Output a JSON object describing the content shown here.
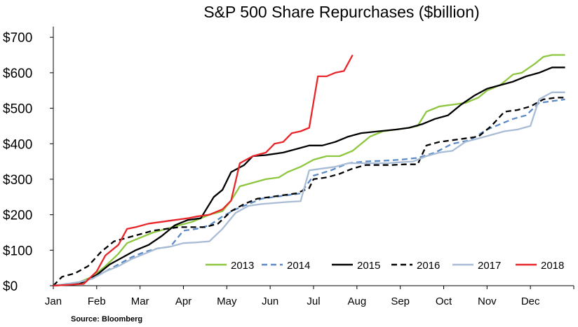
{
  "chart_data": {
    "type": "line",
    "title": "S&P 500 Share Repurchases ($billion)",
    "source": "Source: Bloomberg",
    "xlabel": "",
    "ylabel": "",
    "x_ticks": [
      "Jan",
      "Feb",
      "Mar",
      "Apr",
      "May",
      "Jun",
      "Jul",
      "Aug",
      "Sep",
      "Oct",
      "Nov",
      "Dec"
    ],
    "xlim": [
      0,
      12
    ],
    "ylim": [
      0,
      730
    ],
    "y_ticks": [
      0,
      100,
      200,
      300,
      400,
      500,
      600,
      700
    ],
    "y_tick_labels": [
      "$0",
      "$100",
      "$200",
      "$300",
      "$400",
      "$500",
      "$600",
      "$700"
    ],
    "grid": false,
    "legend_position": "bottom-right",
    "series": [
      {
        "name": "2013",
        "color": "#8dc63f",
        "dash": "solid",
        "points": [
          [
            0,
            0
          ],
          [
            0.5,
            5
          ],
          [
            0.9,
            25
          ],
          [
            1.2,
            55
          ],
          [
            1.5,
            90
          ],
          [
            1.7,
            120
          ],
          [
            2.0,
            135
          ],
          [
            2.3,
            150
          ],
          [
            2.6,
            160
          ],
          [
            2.9,
            170
          ],
          [
            3.2,
            180
          ],
          [
            3.6,
            200
          ],
          [
            3.9,
            210
          ],
          [
            4.1,
            240
          ],
          [
            4.3,
            280
          ],
          [
            4.6,
            290
          ],
          [
            4.9,
            300
          ],
          [
            5.2,
            305
          ],
          [
            5.4,
            320
          ],
          [
            5.7,
            335
          ],
          [
            6.0,
            355
          ],
          [
            6.3,
            365
          ],
          [
            6.6,
            365
          ],
          [
            6.9,
            380
          ],
          [
            7.3,
            420
          ],
          [
            7.6,
            435
          ],
          [
            7.9,
            440
          ],
          [
            8.2,
            445
          ],
          [
            8.4,
            450
          ],
          [
            8.6,
            490
          ],
          [
            8.9,
            505
          ],
          [
            9.2,
            510
          ],
          [
            9.5,
            515
          ],
          [
            9.8,
            530
          ],
          [
            10.0,
            550
          ],
          [
            10.3,
            565
          ],
          [
            10.6,
            595
          ],
          [
            10.8,
            600
          ],
          [
            11.1,
            625
          ],
          [
            11.3,
            645
          ],
          [
            11.5,
            650
          ],
          [
            11.8,
            650
          ]
        ]
      },
      {
        "name": "2014",
        "color": "#5b8ac6",
        "dash": "dashed",
        "points": [
          [
            0,
            0
          ],
          [
            0.6,
            10
          ],
          [
            0.9,
            20
          ],
          [
            1.2,
            40
          ],
          [
            1.5,
            60
          ],
          [
            1.8,
            80
          ],
          [
            2.1,
            95
          ],
          [
            2.4,
            105
          ],
          [
            2.7,
            110
          ],
          [
            3.0,
            155
          ],
          [
            3.3,
            160
          ],
          [
            3.6,
            170
          ],
          [
            3.9,
            195
          ],
          [
            4.2,
            215
          ],
          [
            4.5,
            230
          ],
          [
            4.8,
            245
          ],
          [
            5.1,
            250
          ],
          [
            5.4,
            255
          ],
          [
            5.7,
            260
          ],
          [
            6.0,
            310
          ],
          [
            6.4,
            325
          ],
          [
            6.8,
            345
          ],
          [
            7.2,
            350
          ],
          [
            7.6,
            352
          ],
          [
            8.0,
            355
          ],
          [
            8.4,
            360
          ],
          [
            8.8,
            375
          ],
          [
            9.2,
            400
          ],
          [
            9.6,
            410
          ],
          [
            10.0,
            440
          ],
          [
            10.3,
            455
          ],
          [
            10.6,
            470
          ],
          [
            10.9,
            480
          ],
          [
            11.2,
            515
          ],
          [
            11.5,
            520
          ],
          [
            11.8,
            525
          ]
        ]
      },
      {
        "name": "2015",
        "color": "#000000",
        "dash": "solid",
        "points": [
          [
            0,
            0
          ],
          [
            0.6,
            5
          ],
          [
            1.0,
            30
          ],
          [
            1.3,
            60
          ],
          [
            1.6,
            80
          ],
          [
            1.9,
            100
          ],
          [
            2.2,
            115
          ],
          [
            2.5,
            140
          ],
          [
            2.8,
            170
          ],
          [
            3.1,
            185
          ],
          [
            3.4,
            190
          ],
          [
            3.7,
            250
          ],
          [
            3.9,
            270
          ],
          [
            4.1,
            320
          ],
          [
            4.4,
            340
          ],
          [
            4.6,
            365
          ],
          [
            4.9,
            368
          ],
          [
            5.3,
            375
          ],
          [
            5.6,
            385
          ],
          [
            5.9,
            395
          ],
          [
            6.2,
            395
          ],
          [
            6.5,
            405
          ],
          [
            6.8,
            420
          ],
          [
            7.1,
            430
          ],
          [
            7.5,
            435
          ],
          [
            7.9,
            440
          ],
          [
            8.2,
            445
          ],
          [
            8.5,
            455
          ],
          [
            8.8,
            470
          ],
          [
            9.1,
            480
          ],
          [
            9.4,
            510
          ],
          [
            9.7,
            535
          ],
          [
            10.0,
            555
          ],
          [
            10.3,
            565
          ],
          [
            10.6,
            575
          ],
          [
            10.9,
            590
          ],
          [
            11.2,
            600
          ],
          [
            11.5,
            615
          ],
          [
            11.8,
            615
          ]
        ]
      },
      {
        "name": "2016",
        "color": "#000000",
        "dash": "dashed",
        "points": [
          [
            0,
            0
          ],
          [
            0.2,
            25
          ],
          [
            0.5,
            35
          ],
          [
            0.8,
            55
          ],
          [
            1.1,
            95
          ],
          [
            1.4,
            125
          ],
          [
            1.7,
            135
          ],
          [
            2.0,
            145
          ],
          [
            2.3,
            155
          ],
          [
            2.6,
            160
          ],
          [
            2.9,
            165
          ],
          [
            3.2,
            165
          ],
          [
            3.5,
            165
          ],
          [
            3.8,
            175
          ],
          [
            4.1,
            210
          ],
          [
            4.4,
            230
          ],
          [
            4.7,
            245
          ],
          [
            5.0,
            250
          ],
          [
            5.3,
            255
          ],
          [
            5.6,
            260
          ],
          [
            5.9,
            275
          ],
          [
            6.0,
            300
          ],
          [
            6.3,
            305
          ],
          [
            6.6,
            315
          ],
          [
            6.9,
            330
          ],
          [
            7.2,
            340
          ],
          [
            7.5,
            340
          ],
          [
            7.8,
            340
          ],
          [
            8.1,
            342
          ],
          [
            8.4,
            342
          ],
          [
            8.6,
            395
          ],
          [
            8.9,
            405
          ],
          [
            9.2,
            410
          ],
          [
            9.5,
            415
          ],
          [
            9.8,
            420
          ],
          [
            10.1,
            450
          ],
          [
            10.4,
            490
          ],
          [
            10.7,
            495
          ],
          [
            11.0,
            505
          ],
          [
            11.3,
            525
          ],
          [
            11.6,
            530
          ],
          [
            11.8,
            530
          ]
        ]
      },
      {
        "name": "2017",
        "color": "#a9bcd6",
        "dash": "solid",
        "points": [
          [
            0,
            0
          ],
          [
            0.6,
            10
          ],
          [
            0.9,
            20
          ],
          [
            1.2,
            40
          ],
          [
            1.5,
            55
          ],
          [
            1.8,
            75
          ],
          [
            2.1,
            90
          ],
          [
            2.4,
            105
          ],
          [
            2.7,
            110
          ],
          [
            3.0,
            120
          ],
          [
            3.3,
            122
          ],
          [
            3.6,
            125
          ],
          [
            3.9,
            160
          ],
          [
            4.2,
            205
          ],
          [
            4.5,
            225
          ],
          [
            4.8,
            230
          ],
          [
            5.1,
            233
          ],
          [
            5.4,
            236
          ],
          [
            5.7,
            238
          ],
          [
            5.9,
            325
          ],
          [
            6.2,
            330
          ],
          [
            6.5,
            335
          ],
          [
            6.8,
            345
          ],
          [
            7.1,
            345
          ],
          [
            7.4,
            345
          ],
          [
            7.7,
            345
          ],
          [
            8.0,
            348
          ],
          [
            8.3,
            350
          ],
          [
            8.6,
            365
          ],
          [
            8.9,
            375
          ],
          [
            9.2,
            380
          ],
          [
            9.5,
            405
          ],
          [
            9.8,
            415
          ],
          [
            10.1,
            425
          ],
          [
            10.4,
            435
          ],
          [
            10.7,
            440
          ],
          [
            11.0,
            450
          ],
          [
            11.2,
            525
          ],
          [
            11.5,
            545
          ],
          [
            11.8,
            545
          ]
        ]
      },
      {
        "name": "2018",
        "color": "#e8262a",
        "dash": "solid",
        "points": [
          [
            0,
            0
          ],
          [
            0.7,
            5
          ],
          [
            1.0,
            40
          ],
          [
            1.2,
            85
          ],
          [
            1.5,
            115
          ],
          [
            1.7,
            160
          ],
          [
            1.9,
            165
          ],
          [
            2.2,
            175
          ],
          [
            2.5,
            180
          ],
          [
            2.8,
            185
          ],
          [
            3.1,
            190
          ],
          [
            3.3,
            195
          ],
          [
            3.6,
            200
          ],
          [
            3.9,
            215
          ],
          [
            4.1,
            240
          ],
          [
            4.3,
            345
          ],
          [
            4.6,
            365
          ],
          [
            4.9,
            375
          ],
          [
            5.1,
            400
          ],
          [
            5.3,
            405
          ],
          [
            5.5,
            430
          ],
          [
            5.7,
            435
          ],
          [
            5.9,
            445
          ],
          [
            6.1,
            590
          ],
          [
            6.3,
            590
          ],
          [
            6.5,
            600
          ],
          [
            6.7,
            605
          ],
          [
            6.9,
            650
          ]
        ]
      }
    ]
  }
}
